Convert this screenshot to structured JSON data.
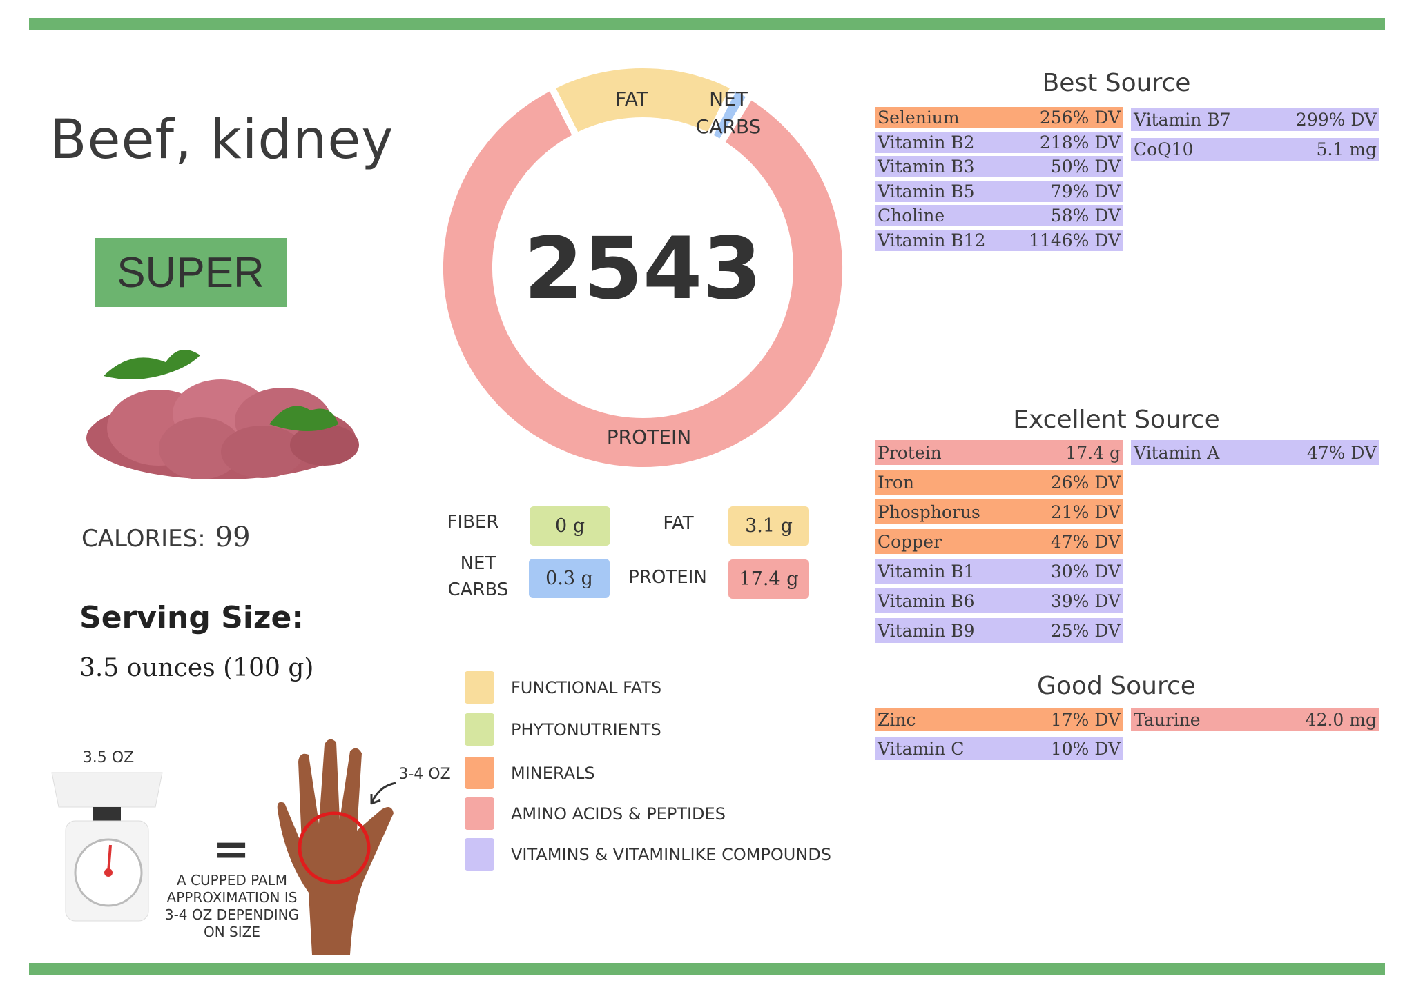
{
  "title": "Beef, kidney",
  "badge": "SUPER",
  "calories": {
    "label": "CALORIES:",
    "value": "99"
  },
  "serving": {
    "title": "Serving Size:",
    "value": "3.5 ounces (100 g)"
  },
  "chart_data": {
    "type": "pie",
    "variant": "donut",
    "center_text": "2543",
    "slices": [
      {
        "label": "FAT",
        "value": 3.1,
        "color": "#f9dd9c"
      },
      {
        "label": "NET CARBS",
        "value": 0.3,
        "color": "#a6c8f5"
      },
      {
        "label": "PROTEIN",
        "value": 17.4,
        "color": "#f5a7a3"
      }
    ]
  },
  "macros": {
    "fiber": {
      "label": "FIBER",
      "value": "0 g",
      "color": "#d6e6a0"
    },
    "fat": {
      "label": "FAT",
      "value": "3.1 g",
      "color": "#f9dd9c"
    },
    "net_carbs": {
      "label_1": "NET",
      "label_2": "CARBS",
      "value": "0.3 g",
      "color": "#a6c8f5"
    },
    "protein": {
      "label": "PROTEIN",
      "value": "17.4 g",
      "color": "#f5a7a3"
    }
  },
  "legend": [
    {
      "label": "FUNCTIONAL  FATS",
      "color": "#f9dd9c"
    },
    {
      "label": "PHYTONUTRIENTS",
      "color": "#d6e6a0"
    },
    {
      "label": "MINERALS",
      "color": "#fca877"
    },
    {
      "label": "AMINO ACIDS & PEPTIDES",
      "color": "#f5a7a3"
    },
    {
      "label": "VITAMINS & VITAMINLIKE COMPOUNDS",
      "color": "#cbc3f7"
    }
  ],
  "colors": {
    "mineral": "#fca877",
    "vitamin": "#cbc3f7",
    "amino": "#f5a7a3",
    "brand_green": "#6cb46f"
  },
  "illustration": {
    "scale_label": "3.5 OZ",
    "hand_label": "3-4 OZ",
    "equals": "=",
    "caption": [
      "A CUPPED PALM",
      "APPROXIMATION IS",
      "3-4 OZ DEPENDING",
      "ON SIZE"
    ]
  },
  "sources": {
    "best": {
      "title": "Best Source",
      "left": [
        {
          "name": "Selenium",
          "value": "256% DV",
          "type": "mineral"
        },
        {
          "name": "Vitamin B2",
          "value": "218% DV",
          "type": "vitamin"
        },
        {
          "name": "Vitamin B3",
          "value": "50% DV",
          "type": "vitamin"
        },
        {
          "name": "Vitamin B5",
          "value": "79% DV",
          "type": "vitamin"
        },
        {
          "name": "Choline",
          "value": "58% DV",
          "type": "vitamin"
        },
        {
          "name": "Vitamin B12",
          "value": "1146% DV",
          "type": "vitamin"
        }
      ],
      "right": [
        {
          "name": "Vitamin B7",
          "value": "299% DV",
          "type": "vitamin"
        },
        {
          "name": "CoQ10",
          "value": "5.1 mg",
          "type": "vitamin"
        }
      ]
    },
    "excellent": {
      "title": "Excellent Source",
      "left": [
        {
          "name": "Protein",
          "value": "17.4 g",
          "type": "amino"
        },
        {
          "name": "Iron",
          "value": "26% DV",
          "type": "mineral"
        },
        {
          "name": "Phosphorus",
          "value": "21% DV",
          "type": "mineral"
        },
        {
          "name": "Copper",
          "value": "47% DV",
          "type": "mineral"
        },
        {
          "name": "Vitamin B1",
          "value": "30% DV",
          "type": "vitamin"
        },
        {
          "name": "Vitamin B6",
          "value": "39% DV",
          "type": "vitamin"
        },
        {
          "name": "Vitamin B9",
          "value": "25% DV",
          "type": "vitamin"
        }
      ],
      "right": [
        {
          "name": "Vitamin A",
          "value": "47% DV",
          "type": "vitamin"
        }
      ]
    },
    "good": {
      "title": "Good Source",
      "left": [
        {
          "name": "Zinc",
          "value": "17% DV",
          "type": "mineral"
        },
        {
          "name": "Vitamin C",
          "value": "10% DV",
          "type": "vitamin"
        }
      ],
      "right": [
        {
          "name": "Taurine",
          "value": "42.0 mg",
          "type": "amino"
        }
      ]
    }
  }
}
